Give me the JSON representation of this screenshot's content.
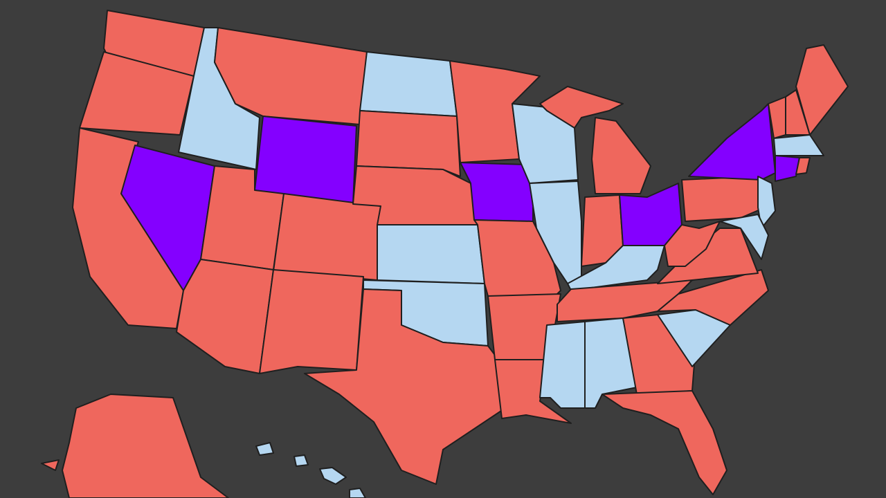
{
  "map": {
    "background": "#3d3d3d",
    "border": "#1f1f1f",
    "fills": [
      "#ef675d",
      "#b5d7f1",
      "#8400ff"
    ]
  }
}
